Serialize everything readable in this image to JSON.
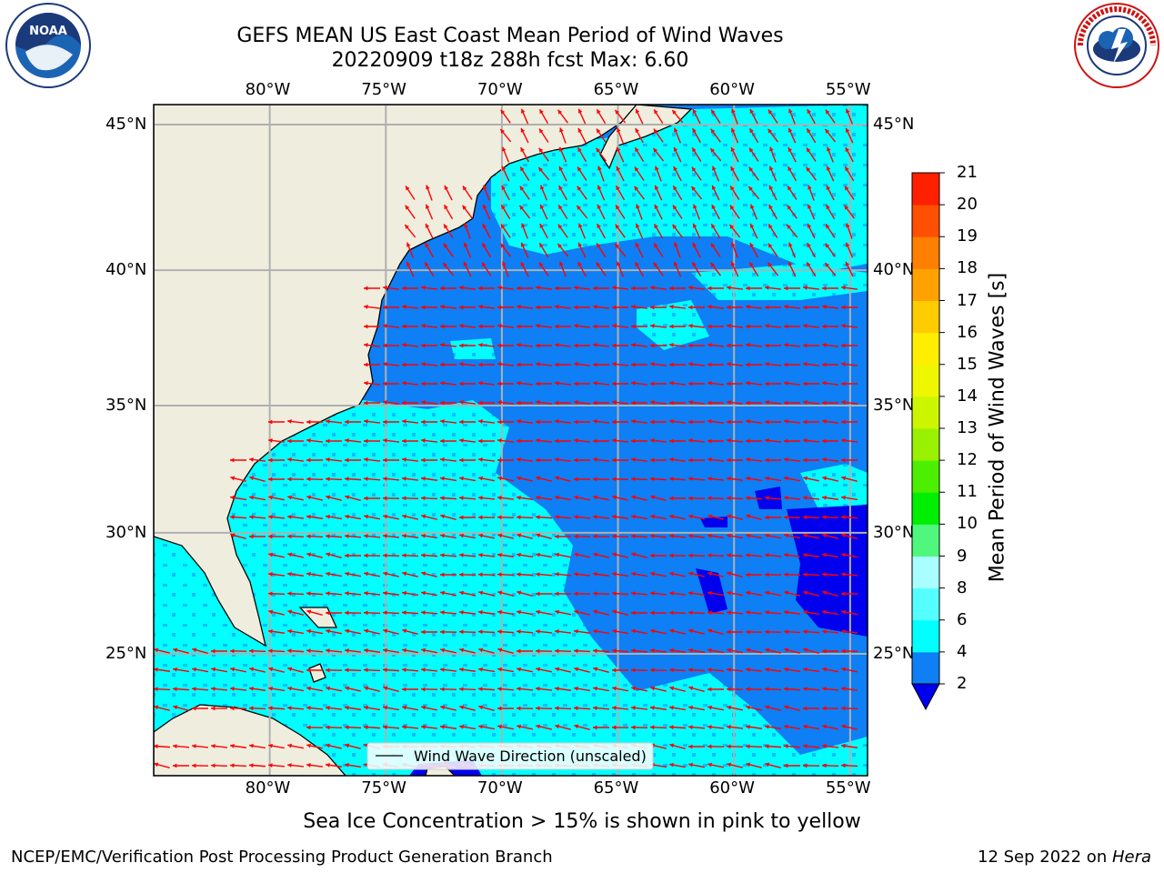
{
  "title_line1": "GEFS MEAN US East Coast Mean Period of Wind Waves",
  "title_line2": "20220909 t18z 288h fcst   Max: 6.60",
  "logos": {
    "left": "NOAA",
    "right": "National Weather Service"
  },
  "map": {
    "region": "US East Coast",
    "lon_range": [
      -85,
      -54.25
    ],
    "lat_range": [
      20.5,
      45.9
    ],
    "lon_ticks": [
      "80°W",
      "75°W",
      "70°W",
      "65°W",
      "60°W",
      "55°W"
    ],
    "lat_ticks": [
      "45°N",
      "40°N",
      "35°N",
      "30°N",
      "25°N"
    ],
    "legend_label": "Wind Wave Direction (unscaled)",
    "arrow_color": "#ff0000",
    "land_color": "#efedde",
    "grid": true
  },
  "colorbar": {
    "label": "Mean Period of Wind Waves [s]",
    "ticks": [
      "2",
      "4",
      "6",
      "8",
      "9",
      "10",
      "11",
      "12",
      "13",
      "14",
      "15",
      "16",
      "17",
      "18",
      "19",
      "20",
      "21"
    ],
    "colors": [
      "#0000ee",
      "#0e7ff4",
      "#00ffff",
      "#55ffff",
      "#a9ffff",
      "#50f77d",
      "#00ee00",
      "#4cef00",
      "#99f000",
      "#ccf600",
      "#eef600",
      "#ffee00",
      "#ffcc00",
      "#ffa200",
      "#ff8000",
      "#ff4f00",
      "#ff2000",
      "#ff0000"
    ]
  },
  "note": "Sea Ice Concentration > 15% is shown in pink to yellow",
  "footer_left": "NCEP/EMC/Verification Post Processing Product Generation Branch",
  "footer_date": "12 Sep 2022 on ",
  "footer_system": "Hera"
}
